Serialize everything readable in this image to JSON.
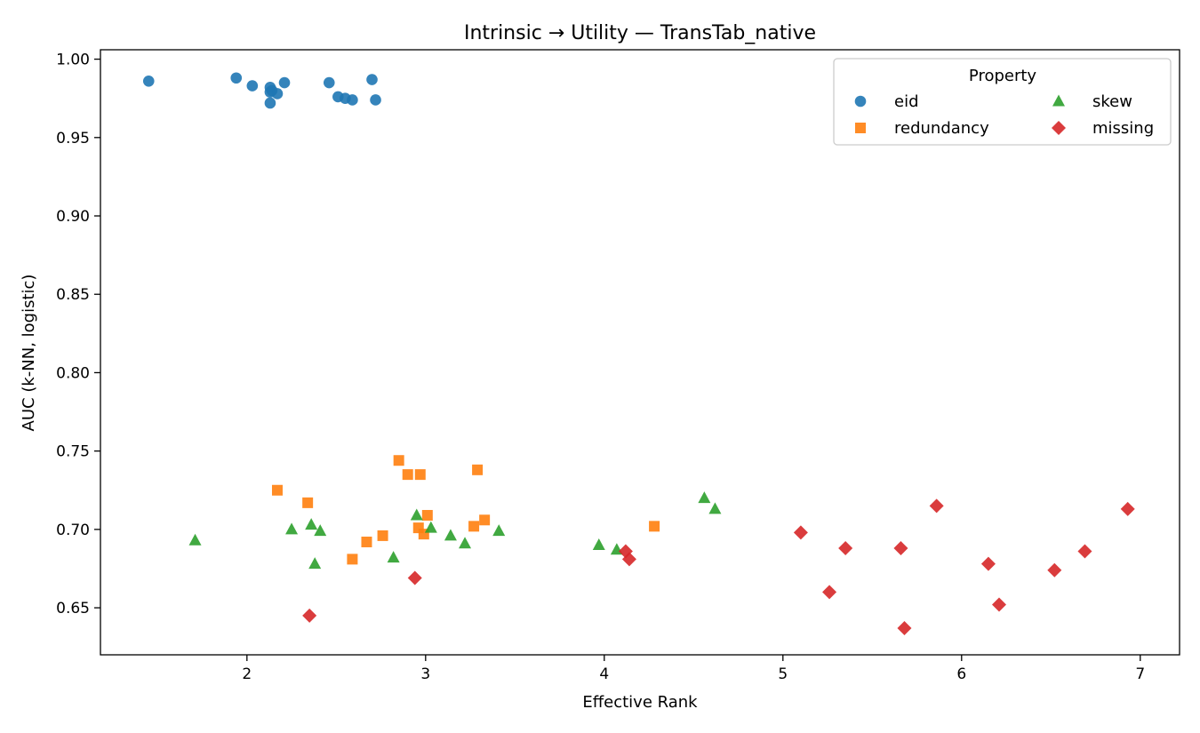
{
  "chart_data": {
    "type": "scatter",
    "title": "Intrinsic → Utility — TransTab_native",
    "xlabel": "Effective Rank",
    "ylabel": "AUC (k-NN, logistic)",
    "xlim": [
      1.18,
      7.22
    ],
    "ylim": [
      0.62,
      1.006
    ],
    "xticks": [
      2,
      3,
      4,
      5,
      6,
      7
    ],
    "yticks": [
      0.65,
      0.7,
      0.75,
      0.8,
      0.85,
      0.9,
      0.95,
      1.0
    ],
    "xtick_labels": [
      "2",
      "3",
      "4",
      "5",
      "6",
      "7"
    ],
    "ytick_labels": [
      "0.65",
      "0.70",
      "0.75",
      "0.80",
      "0.85",
      "0.90",
      "0.95",
      "1.00"
    ],
    "grid": false,
    "legend": {
      "title": "Property",
      "placement": "top-right",
      "columns": 2
    },
    "series": [
      {
        "name": "eid",
        "marker": "circle",
        "color": "#1f77b4",
        "points": [
          [
            1.45,
            0.986
          ],
          [
            1.94,
            0.988
          ],
          [
            2.03,
            0.983
          ],
          [
            2.13,
            0.972
          ],
          [
            2.13,
            0.979
          ],
          [
            2.13,
            0.982
          ],
          [
            2.14,
            0.98
          ],
          [
            2.17,
            0.978
          ],
          [
            2.21,
            0.985
          ],
          [
            2.46,
            0.985
          ],
          [
            2.51,
            0.976
          ],
          [
            2.55,
            0.975
          ],
          [
            2.59,
            0.974
          ],
          [
            2.7,
            0.987
          ],
          [
            2.72,
            0.974
          ]
        ]
      },
      {
        "name": "redundancy",
        "marker": "square",
        "color": "#ff7f0e",
        "points": [
          [
            2.17,
            0.725
          ],
          [
            2.34,
            0.717
          ],
          [
            2.59,
            0.681
          ],
          [
            2.67,
            0.692
          ],
          [
            2.76,
            0.696
          ],
          [
            2.85,
            0.744
          ],
          [
            2.9,
            0.735
          ],
          [
            2.96,
            0.701
          ],
          [
            2.97,
            0.735
          ],
          [
            2.99,
            0.697
          ],
          [
            3.01,
            0.709
          ],
          [
            3.27,
            0.702
          ],
          [
            3.29,
            0.738
          ],
          [
            3.33,
            0.706
          ],
          [
            4.28,
            0.702
          ]
        ]
      },
      {
        "name": "skew",
        "marker": "triangle",
        "color": "#2ca02c",
        "points": [
          [
            1.71,
            0.693
          ],
          [
            2.25,
            0.7
          ],
          [
            2.36,
            0.703
          ],
          [
            2.38,
            0.678
          ],
          [
            2.41,
            0.699
          ],
          [
            2.82,
            0.682
          ],
          [
            2.95,
            0.709
          ],
          [
            3.03,
            0.701
          ],
          [
            3.14,
            0.696
          ],
          [
            3.22,
            0.691
          ],
          [
            3.41,
            0.699
          ],
          [
            3.97,
            0.69
          ],
          [
            4.07,
            0.687
          ],
          [
            4.56,
            0.72
          ],
          [
            4.62,
            0.713
          ]
        ]
      },
      {
        "name": "missing",
        "marker": "diamond",
        "color": "#d62728",
        "points": [
          [
            2.35,
            0.645
          ],
          [
            2.94,
            0.669
          ],
          [
            4.12,
            0.686
          ],
          [
            4.14,
            0.681
          ],
          [
            5.1,
            0.698
          ],
          [
            5.26,
            0.66
          ],
          [
            5.35,
            0.688
          ],
          [
            5.66,
            0.688
          ],
          [
            5.68,
            0.637
          ],
          [
            5.86,
            0.715
          ],
          [
            6.15,
            0.678
          ],
          [
            6.21,
            0.652
          ],
          [
            6.52,
            0.674
          ],
          [
            6.69,
            0.686
          ],
          [
            6.93,
            0.713
          ]
        ]
      }
    ]
  }
}
